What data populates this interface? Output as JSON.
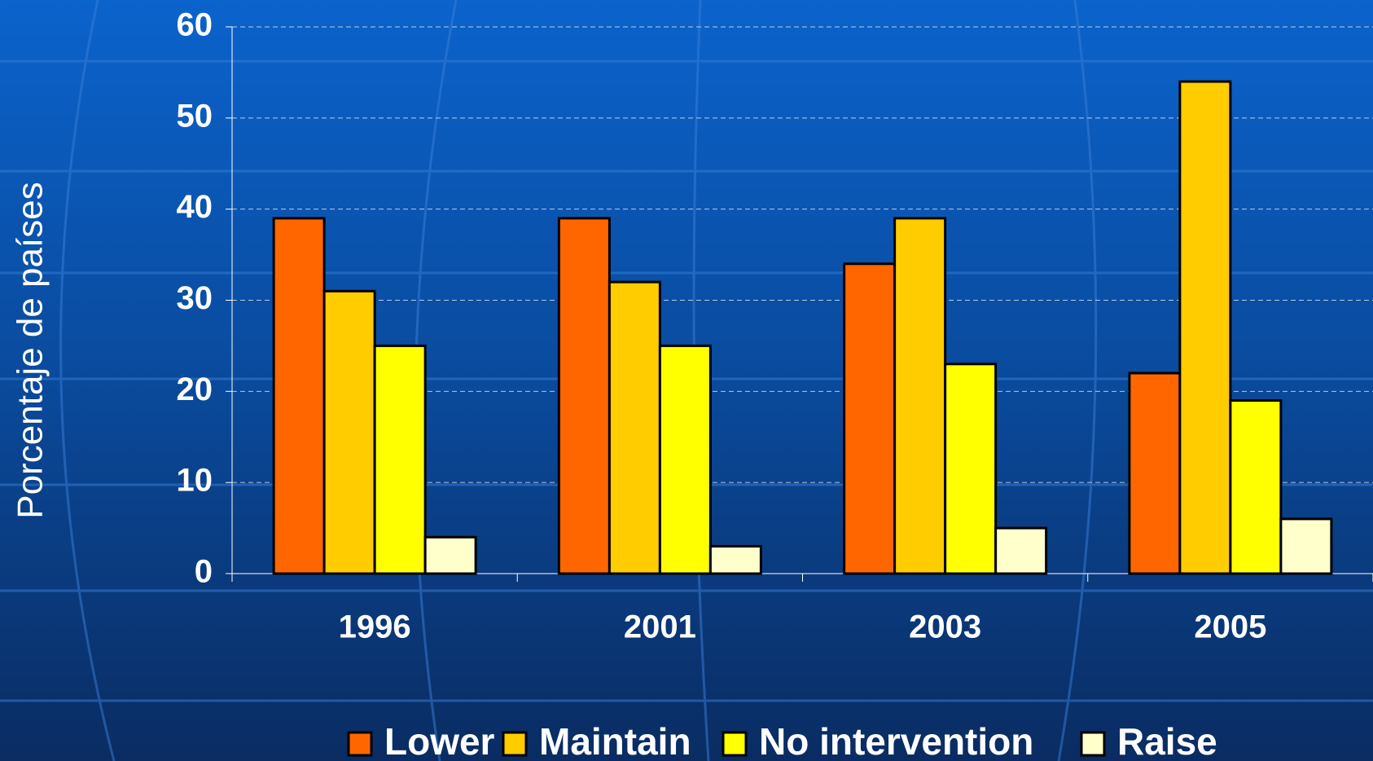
{
  "chart_data": {
    "type": "bar",
    "ylabel": "Porcentaje de países",
    "categories": [
      "1996",
      "2001",
      "2003",
      "2005"
    ],
    "series": [
      {
        "name": "Lower",
        "color": "#ff6600",
        "values": [
          39,
          39,
          34,
          22
        ]
      },
      {
        "name": "Maintain",
        "color": "#ffcc00",
        "values": [
          31,
          32,
          39,
          54
        ]
      },
      {
        "name": "No intervention",
        "color": "#ffff00",
        "values": [
          25,
          25,
          23,
          19
        ]
      },
      {
        "name": "Raise",
        "color": "#ffffcc",
        "values": [
          4,
          3,
          5,
          6
        ]
      }
    ],
    "ylim": [
      0,
      60
    ],
    "yticks": [
      0,
      10,
      20,
      30,
      40,
      50,
      60
    ],
    "grid": true,
    "legend": "bottom"
  }
}
